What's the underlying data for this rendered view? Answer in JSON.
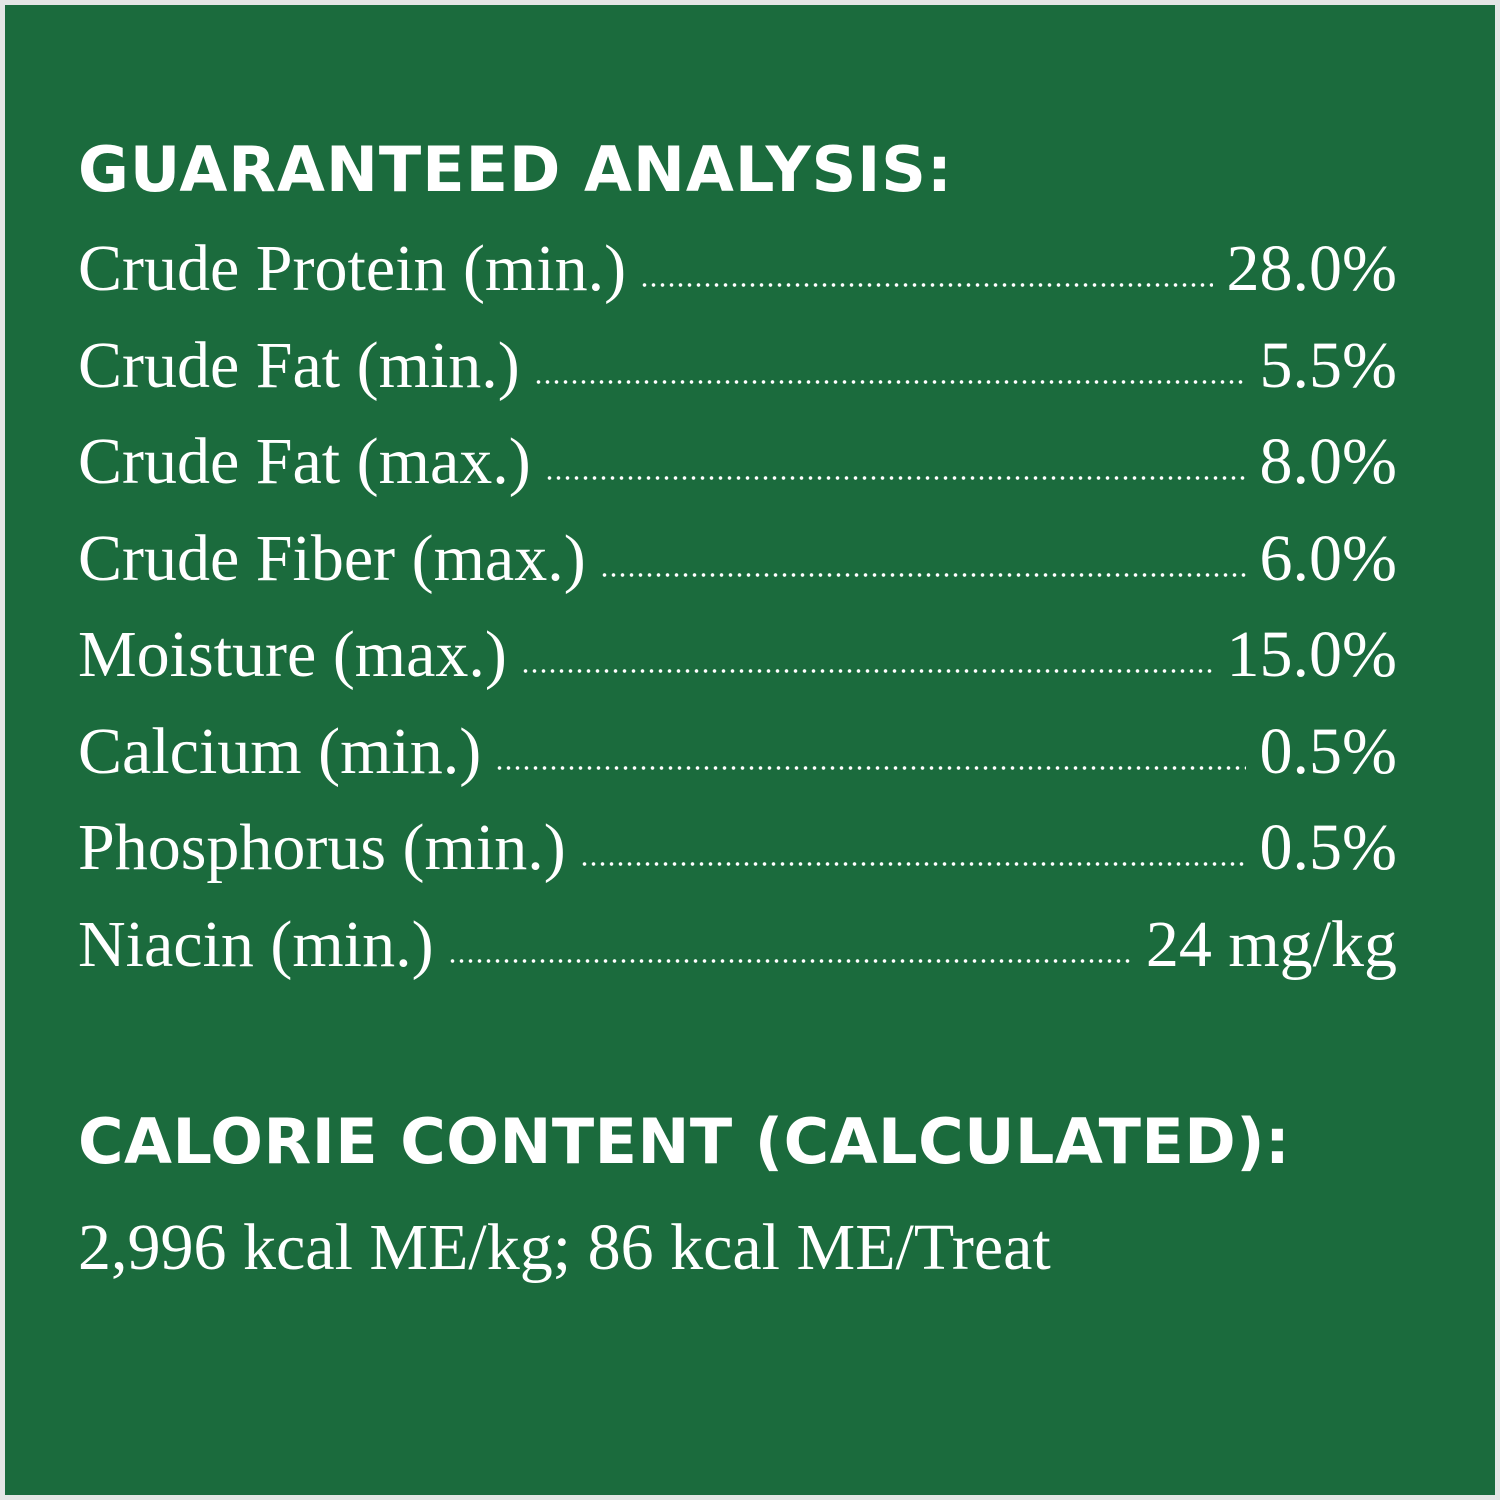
{
  "colors": {
    "background": "#1b6b3d",
    "text": "#ffffff",
    "border": "#e4e6e5"
  },
  "guaranteed_analysis": {
    "title": "GUARANTEED ANALYSIS:",
    "rows": [
      {
        "label": "Crude Protein (min.)",
        "value": "28.0%"
      },
      {
        "label": "Crude Fat (min.)",
        "value": "5.5%"
      },
      {
        "label": "Crude Fat (max.)",
        "value": "8.0%"
      },
      {
        "label": "Crude Fiber (max.)",
        "value": "6.0%"
      },
      {
        "label": "Moisture (max.)",
        "value": "15.0%"
      },
      {
        "label": "Calcium (min.)",
        "value": "0.5%"
      },
      {
        "label": "Phosphorus (min.)",
        "value": "0.5%"
      },
      {
        "label": "Niacin (min.)",
        "value": "24 mg/kg"
      }
    ]
  },
  "calorie_content": {
    "title": "CALORIE CONTENT (CALCULATED):",
    "text": "2,996 kcal ME/kg; 86 kcal ME/Treat"
  }
}
